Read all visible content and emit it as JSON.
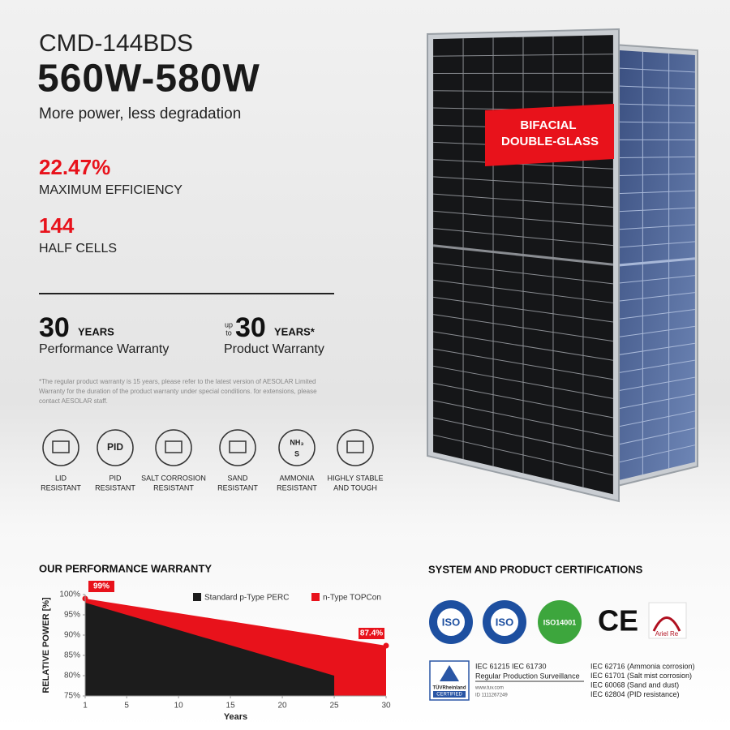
{
  "header": {
    "model": "CMD-144BDS",
    "power": "560W-580W",
    "tagline": "More power, less degradation"
  },
  "badge": [
    "BIFACIAL",
    "DOUBLE-GLASS"
  ],
  "stats": [
    {
      "value": "22.47%",
      "label": "MAXIMUM EFFICIENCY"
    },
    {
      "value": "144",
      "label": "HALF CELLS"
    }
  ],
  "warranties": [
    {
      "number": "30",
      "unit": "YEARS",
      "label": "Performance Warranty"
    },
    {
      "prefix": [
        "up",
        "to"
      ],
      "number": "30",
      "unit": "YEARS*",
      "label": "Product Warranty"
    }
  ],
  "footnote": [
    "*The regular product warranty is 15 years, please refer to the latest version of AESOLAR Limited",
    "Warranty for the duration of the product warranty under special conditions. for extensions, please",
    "contact AESOLAR staff."
  ],
  "features": [
    {
      "label": [
        "LID",
        "RESISTANT"
      ]
    },
    {
      "icon_text": [
        "PID"
      ],
      "label": [
        "PID",
        "RESISTANT"
      ]
    },
    {
      "label": [
        "SALT CORROSION",
        "RESISTANT"
      ]
    },
    {
      "label": [
        "SAND",
        "RESISTANT"
      ]
    },
    {
      "icon_text": [
        "NH₃",
        "S"
      ],
      "label": [
        "AMMONIA",
        "RESISTANT"
      ]
    },
    {
      "label": [
        "HIGHLY STABLE",
        "AND TOUGH"
      ]
    }
  ],
  "chart_data": {
    "type": "area",
    "title": "OUR PERFORMANCE WARRANTY",
    "y_label": "RELATIVE POWER [%]",
    "x_label": "Years",
    "xlim": [
      1,
      30
    ],
    "xticks": [
      1,
      5,
      10,
      15,
      20,
      25,
      30
    ],
    "ylim": [
      75,
      100
    ],
    "yticks": [
      {
        "value": 75,
        "label": "75%"
      },
      {
        "value": 80,
        "label": "80%"
      },
      {
        "value": 85,
        "label": "85%"
      },
      {
        "value": 90,
        "label": "90%"
      },
      {
        "value": 95,
        "label": "95%"
      },
      {
        "value": 100,
        "label": "100%"
      }
    ],
    "series": [
      {
        "name": "n-Type TOPCon",
        "color": "#e8121b",
        "x": [
          1,
          30
        ],
        "values": [
          99,
          87.4
        ],
        "value_labels": [
          "99%",
          "87.4%"
        ]
      },
      {
        "name": "Standard p-Type PERC",
        "color": "#1c1c1c",
        "x": [
          1,
          25
        ],
        "values": [
          98,
          80
        ]
      }
    ],
    "legend": "top"
  },
  "certifications": {
    "title": "SYSTEM AND PRODUCT CERTIFICATIONS",
    "logos": [
      "ISO",
      "ISO",
      "ISO14001",
      "CE",
      "Ariel Re"
    ],
    "tuv": {
      "brand": "TÜVRheinland",
      "mark": "CERTIFIED",
      "standards": "IEC 61215   IEC 61730",
      "scope": "Regular Production Surveillance",
      "url": "www.tuv.com",
      "id": "ID 1111267249"
    },
    "standards": [
      "IEC 62716 (Ammonia corrosion)",
      "IEC 61701 (Salt mist corrosion)",
      "IEC 60068 (Sand and dust)",
      "IEC 62804 (PID resistance)"
    ]
  }
}
